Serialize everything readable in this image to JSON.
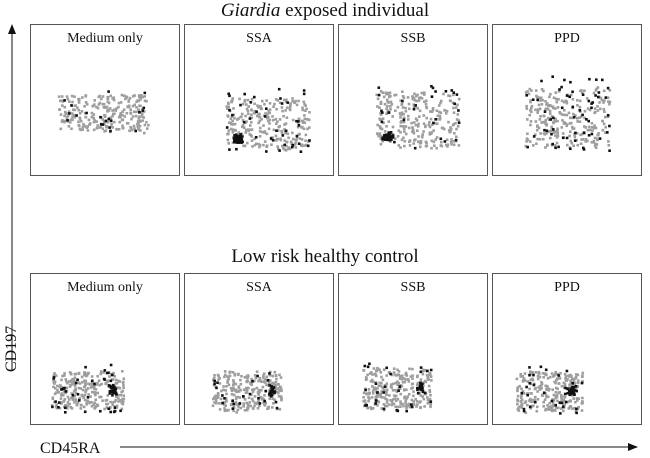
{
  "chart_data": {
    "type": "scatter",
    "xlabel": "CD45RA",
    "ylabel": "CD197",
    "point_colors": {
      "background": "#9e9e9e",
      "highlight": "#111111"
    },
    "groups": [
      {
        "title_italic": "Giardia",
        "title_rest": " exposed individual",
        "panels": [
          {
            "label": "Medium only",
            "cloud": {
              "x": [
                0.15,
                0.8
              ],
              "y": [
                0.35,
                0.65
              ]
            },
            "dense_low": false,
            "spread": 0.15,
            "dark_count": 20
          },
          {
            "label": "SSA",
            "cloud": {
              "x": [
                0.25,
                0.85
              ],
              "y": [
                0.2,
                0.62
              ]
            },
            "dense_low": true,
            "spread": 0.25,
            "dark_count": 150
          },
          {
            "label": "SSB",
            "cloud": {
              "x": [
                0.22,
                0.82
              ],
              "y": [
                0.22,
                0.68
              ]
            },
            "dense_low": true,
            "spread": 0.22,
            "dark_count": 95
          },
          {
            "label": "PPD",
            "cloud": {
              "x": [
                0.18,
                0.8
              ],
              "y": [
                0.22,
                0.7
              ]
            },
            "dense_low": false,
            "spread": 0.28,
            "dark_count": 60
          }
        ]
      },
      {
        "title_italic": "",
        "title_rest": "Low risk healthy control",
        "panels": [
          {
            "label": "Medium only",
            "cloud": {
              "x": [
                0.1,
                0.62
              ],
              "y": [
                0.12,
                0.42
              ]
            },
            "dense_low": false,
            "spread": 0.3,
            "dark_count": 70
          },
          {
            "label": "SSA",
            "cloud": {
              "x": [
                0.15,
                0.65
              ],
              "y": [
                0.1,
                0.42
              ]
            },
            "dense_low": false,
            "spread": 0.25,
            "dark_count": 45
          },
          {
            "label": "SSB",
            "cloud": {
              "x": [
                0.12,
                0.62
              ],
              "y": [
                0.12,
                0.45
              ]
            },
            "dense_low": false,
            "spread": 0.25,
            "dark_count": 50
          },
          {
            "label": "PPD",
            "cloud": {
              "x": [
                0.12,
                0.6
              ],
              "y": [
                0.1,
                0.42
              ]
            },
            "dense_low": false,
            "spread": 0.25,
            "dark_count": 55
          }
        ]
      }
    ]
  }
}
